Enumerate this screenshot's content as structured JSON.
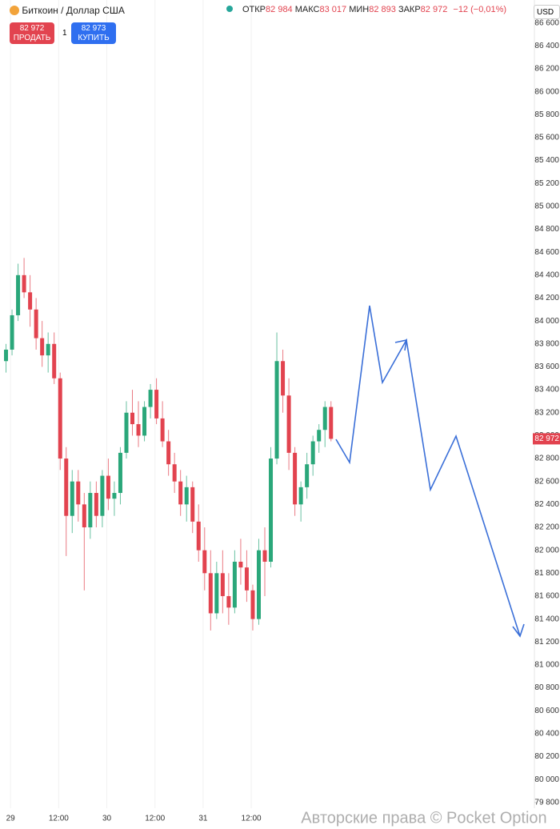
{
  "header": {
    "symbol": "Биткоин / Доллар США",
    "open_label": "ОТКР",
    "open": "82 984",
    "high_label": "МАКС",
    "high": "83 017",
    "low_label": "МИН",
    "low": "82 893",
    "close_label": "ЗАКР",
    "close": "82 972",
    "change": "−12 (−0,01%)",
    "currency": "USD"
  },
  "trade": {
    "sell_price": "82 972",
    "sell_label": "ПРОДАТЬ",
    "amount": "1",
    "buy_price": "82 973",
    "buy_label": "КУПИТЬ"
  },
  "watermark": "Авторские права © Pocket Option",
  "chart_data": {
    "type": "candlestick",
    "up_color": "#2aa77a",
    "down_color": "#e2434f",
    "grid": true,
    "xlim": [
      -1,
      87
    ],
    "ylim": [
      79750,
      86800
    ],
    "xticks": [
      {
        "value": 0.75,
        "label": "29"
      },
      {
        "value": 8.75,
        "label": "12:00"
      },
      {
        "value": 16.75,
        "label": "30"
      },
      {
        "value": 24.75,
        "label": "12:00"
      },
      {
        "value": 32.75,
        "label": "31"
      },
      {
        "value": 40.75,
        "label": "12:00"
      }
    ],
    "yticks": [
      {
        "value": 79800,
        "label": "79 800"
      },
      {
        "value": 80000,
        "label": "80 000"
      },
      {
        "value": 80200,
        "label": "80 200"
      },
      {
        "value": 80400,
        "label": "80 400"
      },
      {
        "value": 80600,
        "label": "80 600"
      },
      {
        "value": 80800,
        "label": "80 800"
      },
      {
        "value": 81000,
        "label": "81 000"
      },
      {
        "value": 81200,
        "label": "81 200"
      },
      {
        "value": 81400,
        "label": "81 400"
      },
      {
        "value": 81600,
        "label": "81 600"
      },
      {
        "value": 81800,
        "label": "81 800"
      },
      {
        "value": 82000,
        "label": "82 000"
      },
      {
        "value": 82200,
        "label": "82 200"
      },
      {
        "value": 82400,
        "label": "82 400"
      },
      {
        "value": 82600,
        "label": "82 600"
      },
      {
        "value": 82800,
        "label": "82 800"
      },
      {
        "value": 83000,
        "label": "83 000"
      },
      {
        "value": 83200,
        "label": "83 200"
      },
      {
        "value": 83400,
        "label": "83 400"
      },
      {
        "value": 83600,
        "label": "83 600"
      },
      {
        "value": 83800,
        "label": "83 800"
      },
      {
        "value": 84000,
        "label": "84 000"
      },
      {
        "value": 84200,
        "label": "84 200"
      },
      {
        "value": 84400,
        "label": "84 400"
      },
      {
        "value": 84600,
        "label": "84 600"
      },
      {
        "value": 84800,
        "label": "84 800"
      },
      {
        "value": 85000,
        "label": "85 000"
      },
      {
        "value": 85200,
        "label": "85 200"
      },
      {
        "value": 85400,
        "label": "85 400"
      },
      {
        "value": 85600,
        "label": "85 600"
      },
      {
        "value": 85800,
        "label": "85 800"
      },
      {
        "value": 86000,
        "label": "86 000"
      },
      {
        "value": 86200,
        "label": "86 200"
      },
      {
        "value": 86400,
        "label": "86 400"
      },
      {
        "value": 86600,
        "label": "86 600"
      }
    ],
    "price_tag": {
      "value": 82972,
      "label": "82 972"
    },
    "open": [
      83650,
      83750,
      84050,
      84400,
      84250,
      84100,
      83850,
      83700,
      83800,
      83500,
      82800,
      82300,
      82600,
      82400,
      82200,
      82500,
      82300,
      82650,
      82450,
      82500,
      82850,
      83200,
      83100,
      83000,
      83250,
      83400,
      83150,
      82950,
      82750,
      82600,
      82400,
      82550,
      82250,
      82000,
      81800,
      81450,
      81800,
      81600,
      81500,
      81900,
      81850,
      81650,
      81400,
      82000,
      81900,
      82800,
      83650,
      83350,
      82850,
      82400,
      82550,
      82750,
      82950,
      83050,
      83250
    ],
    "high": [
      83800,
      84100,
      84500,
      84550,
      84400,
      84200,
      84000,
      83900,
      83900,
      83550,
      82900,
      82700,
      82700,
      82500,
      82600,
      82600,
      82700,
      82800,
      82600,
      82900,
      83300,
      83400,
      83300,
      83300,
      83450,
      83500,
      83300,
      83050,
      82850,
      82700,
      82650,
      82600,
      82400,
      82200,
      82000,
      81900,
      82000,
      81800,
      82000,
      82100,
      82000,
      81700,
      82100,
      82200,
      82900,
      83900,
      83750,
      83500,
      82900,
      82600,
      82850,
      83000,
      83100,
      83300,
      83300
    ],
    "low": [
      83550,
      83700,
      84000,
      84200,
      83950,
      83750,
      83600,
      83550,
      83450,
      82700,
      81950,
      82150,
      82250,
      81650,
      82100,
      82200,
      82200,
      82350,
      82300,
      82400,
      82800,
      83000,
      82900,
      82950,
      83150,
      83100,
      82900,
      82650,
      82500,
      82300,
      82250,
      82150,
      81900,
      81650,
      81300,
      81400,
      81450,
      81350,
      81450,
      81700,
      81550,
      81300,
      81350,
      81600,
      81850,
      82750,
      83200,
      82700,
      82300,
      82250,
      82450,
      82650,
      82850,
      82900,
      82950
    ],
    "close": [
      83750,
      84050,
      84400,
      84250,
      84100,
      83850,
      83700,
      83800,
      83500,
      82800,
      82300,
      82600,
      82400,
      82200,
      82500,
      82300,
      82650,
      82450,
      82500,
      82850,
      83200,
      83100,
      83000,
      83250,
      83400,
      83150,
      82950,
      82750,
      82600,
      82400,
      82550,
      82250,
      82000,
      81800,
      81450,
      81800,
      81600,
      81500,
      81900,
      81850,
      81650,
      81400,
      82000,
      81900,
      82800,
      83650,
      83350,
      82850,
      82400,
      82550,
      82750,
      82950,
      83050,
      83250,
      82972
    ]
  }
}
